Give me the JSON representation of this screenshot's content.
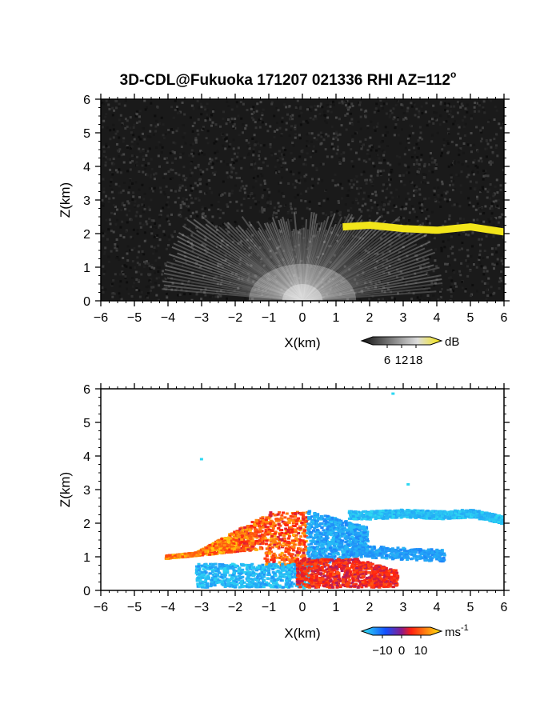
{
  "title": "3D-CDL@Fukuoka 171207 021336 RHI AZ=112",
  "title_degree": "o",
  "chart_data": [
    {
      "type": "heatmap",
      "panel": "top",
      "xlabel": "X(km)",
      "ylabel": "Z(km)",
      "xlim": [
        -6,
        6
      ],
      "ylim": [
        0,
        6
      ],
      "xticks": [
        "-6",
        "-5",
        "-4",
        "-3",
        "-2",
        "-1",
        "0",
        "1",
        "2",
        "3",
        "4",
        "5",
        "6"
      ],
      "yticks": [
        "0",
        "1",
        "2",
        "3",
        "4",
        "5",
        "6"
      ],
      "colorbar": {
        "unit": "dB",
        "ticks": [
          "6",
          "12",
          "18"
        ],
        "values": [
          6,
          12,
          18
        ],
        "range": [
          0,
          24
        ]
      },
      "colors": {
        "background": "#1a1a1a",
        "echo_layer": "#f2e51a"
      },
      "features": [
        {
          "kind": "echo_layer",
          "x": [
            1.2,
            2,
            3,
            4,
            5,
            6
          ],
          "z": [
            2.2,
            2.25,
            2.15,
            2.1,
            2.2,
            2.05
          ],
          "value_db": 20
        }
      ]
    },
    {
      "type": "heatmap",
      "panel": "bottom",
      "xlabel": "X(km)",
      "ylabel": "Z(km)",
      "xlim": [
        -6,
        6
      ],
      "ylim": [
        0,
        6
      ],
      "xticks": [
        "-6",
        "-5",
        "-4",
        "-3",
        "-2",
        "-1",
        "0",
        "1",
        "2",
        "3",
        "4",
        "5",
        "6"
      ],
      "yticks": [
        "0",
        "1",
        "2",
        "3",
        "4",
        "5",
        "6"
      ],
      "colorbar": {
        "unit": "ms",
        "unit_exp": "-1",
        "ticks": [
          "−10",
          "0",
          "10"
        ],
        "values": [
          -10,
          0,
          10
        ],
        "range": [
          -15,
          15
        ]
      },
      "features": [
        {
          "kind": "layer",
          "x": [
            1.4,
            2,
            3,
            4,
            5,
            6
          ],
          "z": [
            2.2,
            2.2,
            2.25,
            2.2,
            2.25,
            2.05
          ],
          "value_ms": -8
        },
        {
          "kind": "outward_region",
          "x_range": [
            -4.1,
            0.1
          ],
          "z_range": [
            0.2,
            2.3
          ],
          "value_ms": 8
        },
        {
          "kind": "inward_region",
          "x_range": [
            0.0,
            2.0
          ],
          "z_range": [
            0.6,
            2.4
          ],
          "value_ms": -12
        }
      ]
    }
  ]
}
